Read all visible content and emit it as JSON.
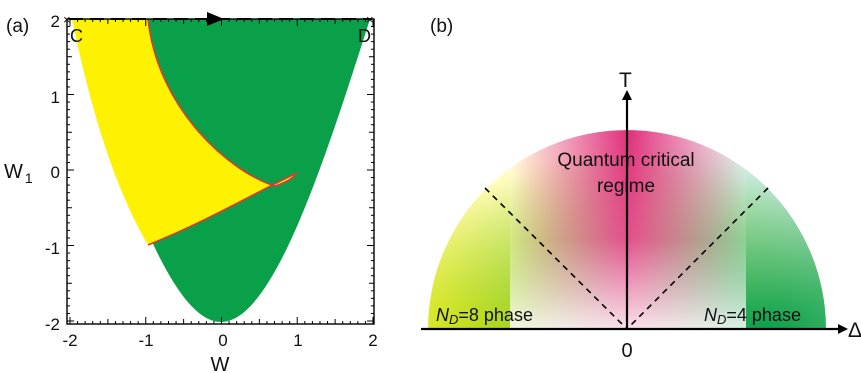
{
  "panel_a": {
    "label": "(a)",
    "xlabel": "W",
    "ylabel_main": "W",
    "ylabel_sub": "1",
    "x_ticks": [
      "-2",
      "-1",
      "0",
      "1",
      "2"
    ],
    "y_ticks": [
      "2",
      "1",
      "0",
      "-1",
      "-2"
    ],
    "corner_left": "C",
    "corner_right": "D",
    "colors": {
      "yellow_region": "#fff200",
      "green_region": "#0aa04a",
      "boundary": "#d63a3a"
    }
  },
  "panel_b": {
    "label": "(b)",
    "t_axis": "T",
    "delta_axis": "Δ",
    "origin": "0",
    "critical_line1": "Quantum critical",
    "critical_line2": "regime",
    "left_phase_N": "N",
    "left_phase_sub": "D",
    "left_phase_rest": "=8 phase",
    "right_phase_N": "N",
    "right_phase_sub": "D",
    "right_phase_rest": "=4 phase",
    "colors": {
      "left_phase": "#fff200",
      "right_phase": "#0aa04a",
      "critical": "#e0307a"
    }
  }
}
